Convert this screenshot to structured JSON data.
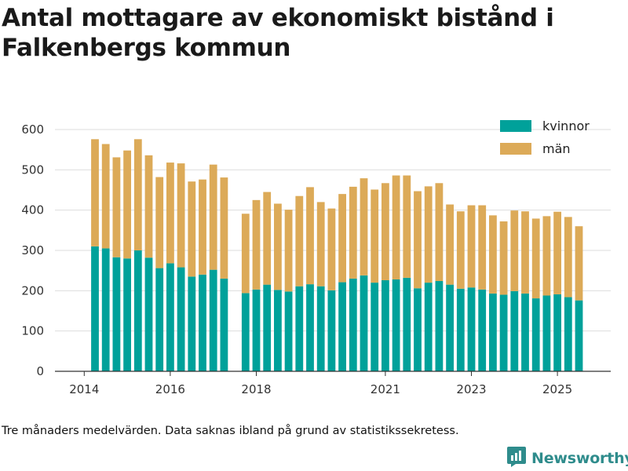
{
  "title": "Antal mottagare av ekonomiskt bistånd i Falkenbergs kommun",
  "footnote": "Tre månaders medelvärden. Data saknas ibland på grund av statistikssekretess.",
  "brand": {
    "name": "Newsworthy",
    "color": "#2f8c8c"
  },
  "colors": {
    "kvinnor": "#00a19a",
    "man": "#dcaa58",
    "grid": "#dddddd",
    "axis": "#333333"
  },
  "chart_data": {
    "type": "bar",
    "stacked": true,
    "title": "Antal mottagare av ekonomiskt bistånd i Falkenbergs kommun",
    "xlabel": "",
    "ylabel": "",
    "ylim": [
      0,
      600
    ],
    "yticks": [
      0,
      100,
      200,
      300,
      400,
      500,
      600
    ],
    "grid": true,
    "legend_position": "top-right",
    "x_ticks": [
      {
        "label": "2014",
        "pos": -1
      },
      {
        "label": "2016",
        "pos": 7
      },
      {
        "label": "2018",
        "pos": 15
      },
      {
        "label": "2021",
        "pos": 27
      },
      {
        "label": "2023",
        "pos": 35
      },
      {
        "label": "2025",
        "pos": 43
      }
    ],
    "series": [
      {
        "name": "kvinnor",
        "values": [
          310,
          305,
          283,
          280,
          300,
          282,
          256,
          268,
          258,
          235,
          240,
          252,
          230,
          null,
          194,
          203,
          215,
          202,
          198,
          211,
          216,
          211,
          201,
          221,
          230,
          238,
          220,
          226,
          228,
          232,
          206,
          220,
          224,
          215,
          205,
          208,
          203,
          193,
          190,
          199,
          193,
          181,
          188,
          191,
          184,
          176
        ]
      },
      {
        "name": "män",
        "values": [
          266,
          259,
          248,
          268,
          276,
          254,
          226,
          250,
          258,
          236,
          236,
          261,
          251,
          null,
          197,
          222,
          230,
          214,
          203,
          224,
          241,
          209,
          203,
          219,
          228,
          241,
          231,
          241,
          258,
          254,
          241,
          239,
          243,
          199,
          192,
          204,
          209,
          194,
          182,
          200,
          204,
          198,
          197,
          205,
          199,
          184
        ]
      }
    ]
  }
}
